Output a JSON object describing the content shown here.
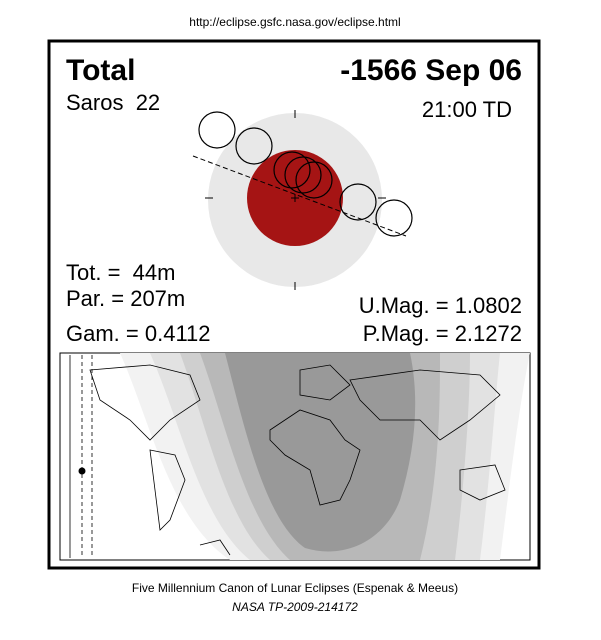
{
  "header": {
    "url": "http://eclipse.gsfc.nasa.gov/eclipse.html"
  },
  "eclipse": {
    "type": "Total",
    "date": "-1566 Sep 06",
    "saros": "Saros  22",
    "time": "21:00 TD",
    "total_duration": "Tot. =  44m",
    "partial_duration": "Par. = 207m",
    "gamma": "Gam. = 0.4112",
    "umbral_magnitude": "U.Mag. = 1.0802",
    "penumbral_magnitude": "P.Mag. = 2.1272"
  },
  "footer": {
    "canon": "Five Millennium Canon of Lunar Eclipses (Espenak & Meeus)",
    "reference": "NASA TP-2009-214172"
  }
}
